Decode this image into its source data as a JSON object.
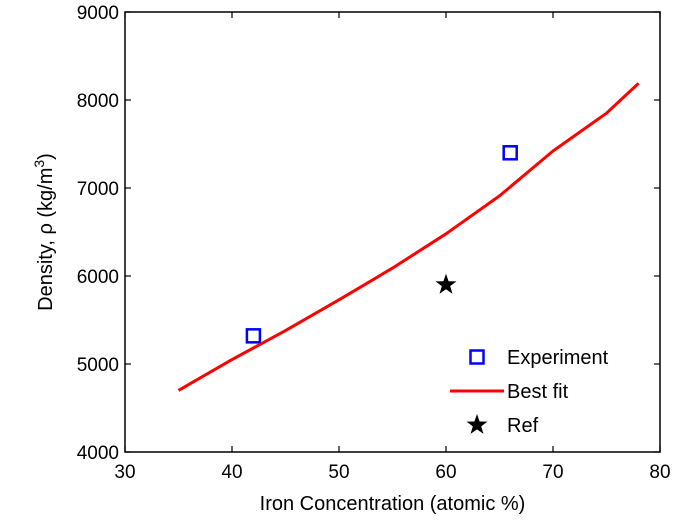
{
  "chart_data": {
    "type": "line",
    "xlabel": "Iron Concentration (atomic %)",
    "ylabel_main": "Density, ρ (kg/m",
    "ylabel_sup": "3",
    "ylabel_close": ")",
    "xlim": [
      30,
      80
    ],
    "ylim": [
      4000,
      9000
    ],
    "xticks": [
      "30",
      "40",
      "50",
      "60",
      "70",
      "80"
    ],
    "yticks": [
      "4000",
      "5000",
      "6000",
      "7000",
      "8000",
      "9000"
    ],
    "grid": false,
    "legend_position": "bottom-right",
    "series": [
      {
        "name": "Experiment",
        "kind": "scatter",
        "marker": "square",
        "color": "#0000ff",
        "points": [
          [
            42,
            5320
          ],
          [
            66,
            7400
          ]
        ]
      },
      {
        "name": "Best fit",
        "kind": "line",
        "color": "#ff0000",
        "points": [
          [
            35,
            4700
          ],
          [
            40,
            5050
          ],
          [
            45,
            5380
          ],
          [
            50,
            5730
          ],
          [
            55,
            6090
          ],
          [
            60,
            6480
          ],
          [
            65,
            6910
          ],
          [
            70,
            7420
          ],
          [
            75,
            7850
          ],
          [
            78,
            8190
          ]
        ]
      },
      {
        "name": "Ref",
        "kind": "scatter",
        "marker": "star",
        "color": "#000000",
        "points": [
          [
            60,
            5900
          ]
        ]
      }
    ]
  }
}
